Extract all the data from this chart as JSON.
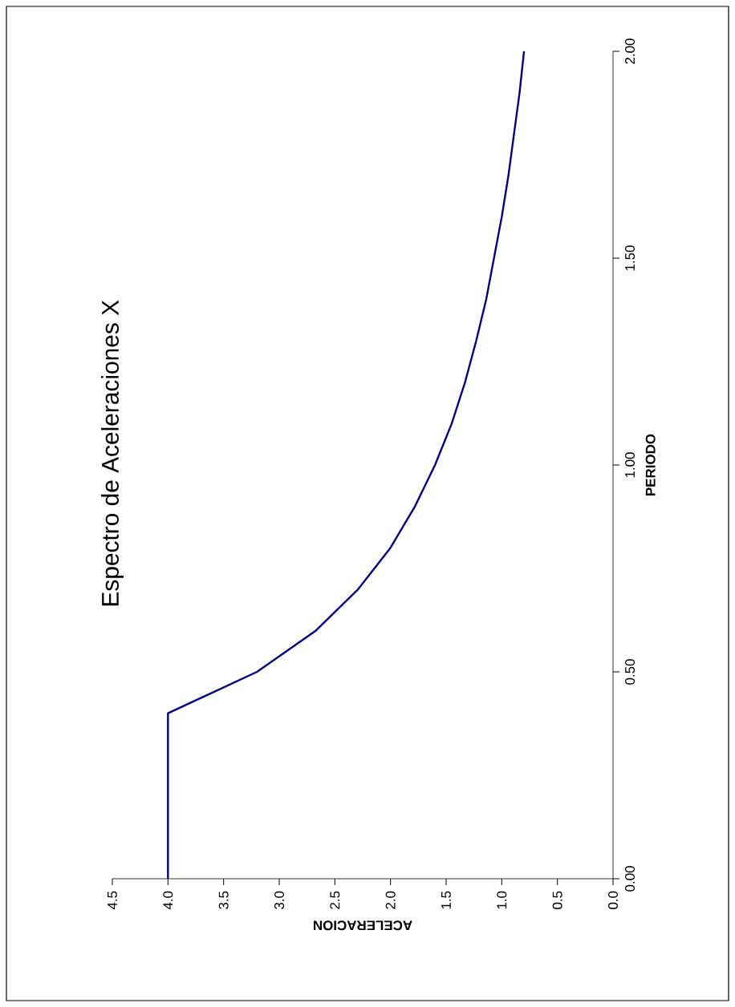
{
  "chart_data": {
    "type": "line",
    "title": "Espectro de Aceleraciones X",
    "xlabel": "ACELERACION",
    "ylabel": "PERIODO",
    "x": [
      4.0,
      4.0,
      3.2,
      2.67,
      2.29,
      2.0,
      1.78,
      1.6,
      1.45,
      1.33,
      1.23,
      1.14,
      1.07,
      1.0,
      0.94,
      0.89,
      0.84,
      0.8
    ],
    "values": [
      0,
      0.4,
      0.5,
      0.6,
      0.7,
      0.8,
      0.9,
      1.0,
      1.1,
      1.2,
      1.3,
      1.4,
      1.5,
      1.6,
      1.7,
      1.8,
      1.9,
      2.0
    ],
    "color": "#000080",
    "xlim": [
      4.5,
      0
    ],
    "ylim": [
      0,
      2
    ],
    "yticks": [
      {
        "value": 0,
        "label": "0.00"
      },
      {
        "value": 0.5,
        "label": "0.50"
      },
      {
        "value": 1,
        "label": "1.00"
      },
      {
        "value": 1.5,
        "label": "1.50"
      },
      {
        "value": 2,
        "label": "2.00"
      }
    ],
    "xticks": [
      {
        "value": 0,
        "label": "0.0"
      },
      {
        "value": 0.5,
        "label": "0.5"
      },
      {
        "value": 1,
        "label": "1.0"
      },
      {
        "value": 1.5,
        "label": "1.5"
      },
      {
        "value": 2,
        "label": "2.0"
      },
      {
        "value": 2.5,
        "label": "2.5"
      },
      {
        "value": 3,
        "label": "3.0"
      },
      {
        "value": 3.5,
        "label": "3.5"
      },
      {
        "value": 4,
        "label": "4.0"
      },
      {
        "value": 4.5,
        "label": "4.5"
      }
    ]
  }
}
